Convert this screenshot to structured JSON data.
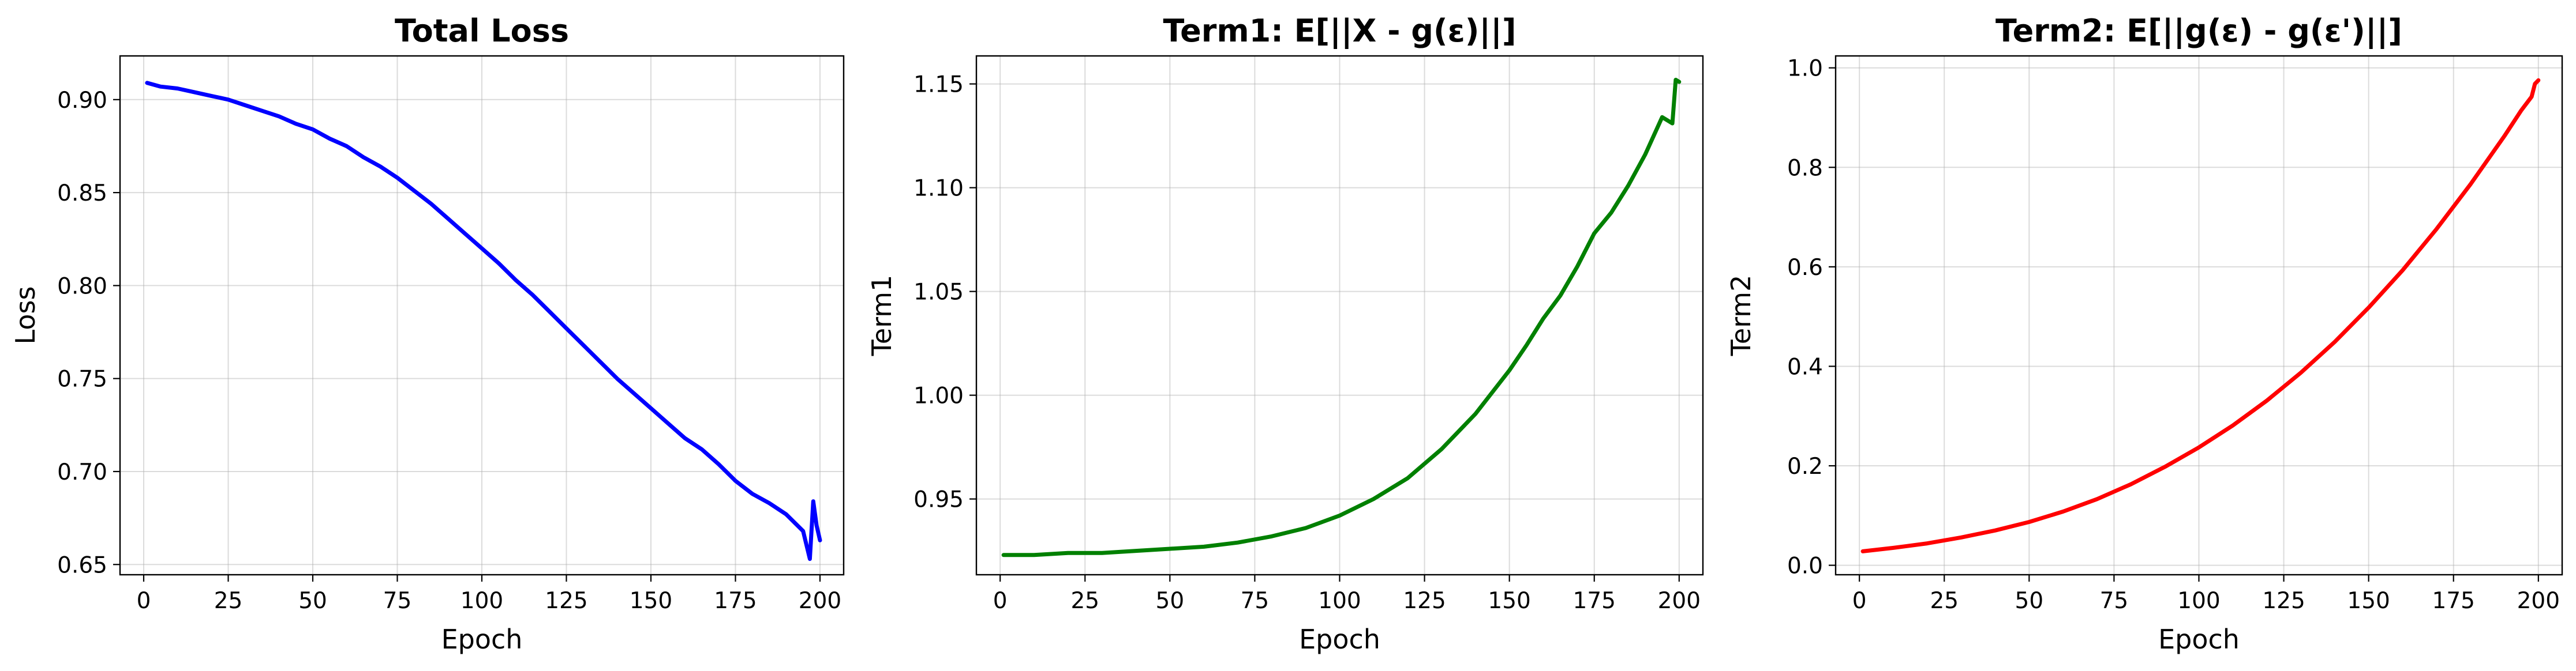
{
  "chart_data": [
    {
      "type": "line",
      "title": "Total Loss",
      "xlabel": "Epoch",
      "ylabel": "Loss",
      "xlim": [
        -7,
        207
      ],
      "ylim": [
        0.6445,
        0.9235
      ],
      "xticks": [
        0,
        25,
        50,
        75,
        100,
        125,
        150,
        175,
        200
      ],
      "yticks": [
        0.65,
        0.7,
        0.75,
        0.8,
        0.85,
        0.9
      ],
      "ytick_labels": [
        "0.65",
        "0.70",
        "0.75",
        "0.80",
        "0.85",
        "0.90"
      ],
      "grid": true,
      "color": "#0000ff",
      "series": [
        {
          "x": [
            1,
            5,
            10,
            15,
            20,
            25,
            30,
            35,
            40,
            45,
            50,
            55,
            60,
            65,
            70,
            75,
            80,
            85,
            90,
            95,
            100,
            105,
            110,
            115,
            120,
            125,
            130,
            135,
            140,
            145,
            150,
            155,
            160,
            165,
            170,
            175,
            180,
            185,
            190,
            195,
            197,
            198,
            199,
            200
          ],
          "y": [
            0.909,
            0.907,
            0.906,
            0.904,
            0.902,
            0.9,
            0.897,
            0.894,
            0.891,
            0.887,
            0.884,
            0.879,
            0.875,
            0.869,
            0.864,
            0.858,
            0.851,
            0.844,
            0.836,
            0.828,
            0.82,
            0.812,
            0.803,
            0.795,
            0.786,
            0.777,
            0.768,
            0.759,
            0.75,
            0.742,
            0.734,
            0.726,
            0.718,
            0.712,
            0.704,
            0.695,
            0.688,
            0.683,
            0.677,
            0.668,
            0.653,
            0.684,
            0.671,
            0.663
          ]
        }
      ]
    },
    {
      "type": "line",
      "title": "Term1: E[||X - g(ε)||]",
      "xlabel": "Epoch",
      "ylabel": "Term1",
      "xlim": [
        -7,
        207
      ],
      "ylim": [
        0.9135,
        1.1635
      ],
      "xticks": [
        0,
        25,
        50,
        75,
        100,
        125,
        150,
        175,
        200
      ],
      "yticks": [
        0.95,
        1.0,
        1.05,
        1.1,
        1.15
      ],
      "ytick_labels": [
        "0.95",
        "1.00",
        "1.05",
        "1.10",
        "1.15"
      ],
      "grid": true,
      "color": "#008000",
      "series": [
        {
          "x": [
            1,
            10,
            20,
            30,
            40,
            50,
            60,
            70,
            80,
            90,
            100,
            110,
            120,
            130,
            140,
            150,
            155,
            160,
            165,
            170,
            175,
            180,
            185,
            190,
            195,
            198,
            199,
            200
          ],
          "y": [
            0.923,
            0.923,
            0.924,
            0.924,
            0.925,
            0.926,
            0.927,
            0.929,
            0.932,
            0.936,
            0.942,
            0.95,
            0.96,
            0.974,
            0.991,
            1.012,
            1.024,
            1.037,
            1.048,
            1.062,
            1.078,
            1.088,
            1.101,
            1.116,
            1.134,
            1.131,
            1.152,
            1.151
          ]
        }
      ]
    },
    {
      "type": "line",
      "title": "Term2: E[||g(ε) - g(ε')||]",
      "xlabel": "Epoch",
      "ylabel": "Term2",
      "xlim": [
        -7,
        207
      ],
      "ylim": [
        -0.019,
        1.024
      ],
      "xticks": [
        0,
        25,
        50,
        75,
        100,
        125,
        150,
        175,
        200
      ],
      "yticks": [
        0.0,
        0.2,
        0.4,
        0.6,
        0.8,
        1.0
      ],
      "ytick_labels": [
        "0.0",
        "0.2",
        "0.4",
        "0.6",
        "0.8",
        "1.0"
      ],
      "grid": true,
      "color": "#ff0000",
      "series": [
        {
          "x": [
            1,
            10,
            20,
            30,
            40,
            50,
            60,
            70,
            80,
            90,
            100,
            110,
            120,
            130,
            140,
            150,
            160,
            170,
            180,
            190,
            195,
            198,
            199,
            200
          ],
          "y": [
            0.028,
            0.035,
            0.044,
            0.056,
            0.07,
            0.087,
            0.108,
            0.133,
            0.163,
            0.198,
            0.237,
            0.281,
            0.331,
            0.387,
            0.449,
            0.518,
            0.593,
            0.676,
            0.766,
            0.863,
            0.915,
            0.942,
            0.968,
            0.975
          ]
        }
      ]
    }
  ]
}
